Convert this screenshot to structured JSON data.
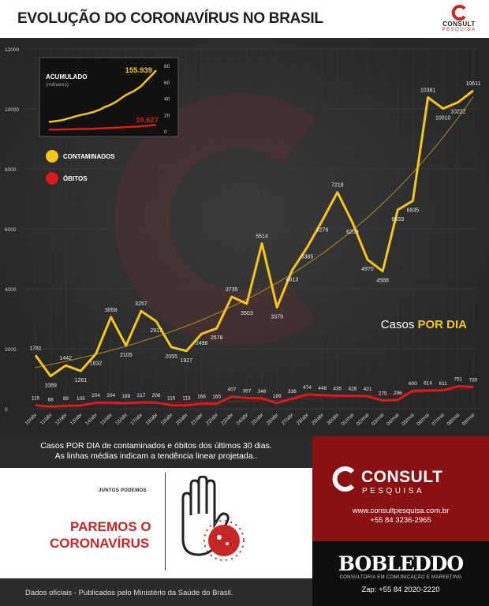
{
  "header": {
    "title": "EVOLUÇÃO DO CORONAVÍRUS NO BRASIL",
    "logo_brand": "CONSULT",
    "logo_sub": "PESQUISA"
  },
  "chart_data": {
    "type": "line",
    "categories": [
      "10/abr",
      "11/abr",
      "12/abr",
      "13/abr",
      "14/abr",
      "15/abr",
      "16/abr",
      "17/abr",
      "18/abr",
      "19/abr",
      "20/abr",
      "21/abr",
      "22/abr",
      "23/abr",
      "24/abr",
      "25/abr",
      "26/abr",
      "27/abr",
      "28/abr",
      "29/abr",
      "30/abr",
      "01/mai",
      "02/mai",
      "03/mai",
      "04/mai",
      "05/mai",
      "06/mai",
      "07/mai",
      "08/mai",
      "09/mai"
    ],
    "ylim": [
      0,
      12000
    ],
    "yticks": [
      0,
      2000,
      4000,
      6000,
      8000,
      10000,
      12000
    ],
    "series": [
      {
        "name": "CONTAMINADOS",
        "color": "#f5c518",
        "values": [
          1781,
          1089,
          1442,
          1261,
          1832,
          3058,
          2105,
          3257,
          2917,
          2055,
          1927,
          2498,
          2678,
          3735,
          3503,
          5514,
          3379,
          4613,
          5385,
          6276,
          7218,
          6209,
          4970,
          4588,
          6633,
          6935,
          10381,
          10010,
          10222,
          10611
        ]
      },
      {
        "name": "ÓBITOS",
        "color": "#d81b1b",
        "values": [
          115,
          68,
          99,
          105,
          204,
          204,
          188,
          217,
          206,
          115,
          113,
          166,
          165,
          407,
          357,
          346,
          189,
          338,
          474,
          449,
          435,
          428,
          421,
          275,
          296,
          600,
          614,
          611,
          751,
          730
        ]
      }
    ],
    "grid": true,
    "legend": "top-left",
    "annotation": "Casos POR DIA",
    "inset": {
      "title": "ACUMULADO",
      "subtitle": "(milhares)",
      "yticks": [
        0,
        20,
        40,
        60,
        80
      ],
      "ylim": [
        0,
        80
      ],
      "contaminados_total": "155.939",
      "obitos_total": "10.627",
      "contaminados_values": [
        19.6,
        20.7,
        22.2,
        23.4,
        25.3,
        28.3,
        30.4,
        33.7,
        36.6,
        38.7,
        40.6,
        43.1,
        45.8,
        49.5,
        53.0,
        58.5,
        61.9,
        66.5,
        71.9,
        78.2,
        85.4,
        91.6,
        96.6,
        101.1,
        107.8,
        114.7,
        125.1,
        135.1,
        145.3,
        155.9
      ],
      "obitos_values": [
        1.06,
        1.12,
        1.22,
        1.33,
        1.53,
        1.73,
        1.92,
        2.14,
        2.35,
        2.46,
        2.58,
        2.74,
        2.91,
        3.31,
        3.67,
        4.02,
        4.21,
        4.54,
        5.02,
        5.47,
        5.9,
        6.33,
        6.75,
        7.03,
        7.32,
        7.92,
        8.54,
        9.15,
        9.9,
        10.63
      ]
    }
  },
  "caption": {
    "line1": "Casos POR DIA de contaminados e óbitos dos últimos 30 dias.",
    "line2": "As linhas médias indicam a tendência linear projetada.."
  },
  "campaign": {
    "small": "JUNTOS PODEMOS",
    "line1": "PAREMOS O",
    "line2": "CORONAVÍRUS"
  },
  "consult": {
    "brand": "CONSULT",
    "sub": "PESQUISA",
    "url": "www.consultpesquisa.com.br",
    "phone": "+55 84 3236-2965"
  },
  "bobleddo": {
    "name": "BOBLEDDO",
    "tagline": "CONSULTORIA EM COMUNICAÇÃO E MARKETING",
    "zap": "Zap: +55 84 2020-2220"
  },
  "footer": {
    "source": "Dados oficiais - Publicados pelo Ministério da Saúde do Brasil."
  },
  "colors": {
    "accent_red": "#8a1111",
    "yellow": "#f5c518",
    "red": "#d81b1b",
    "bg": "#2b2b2b"
  }
}
